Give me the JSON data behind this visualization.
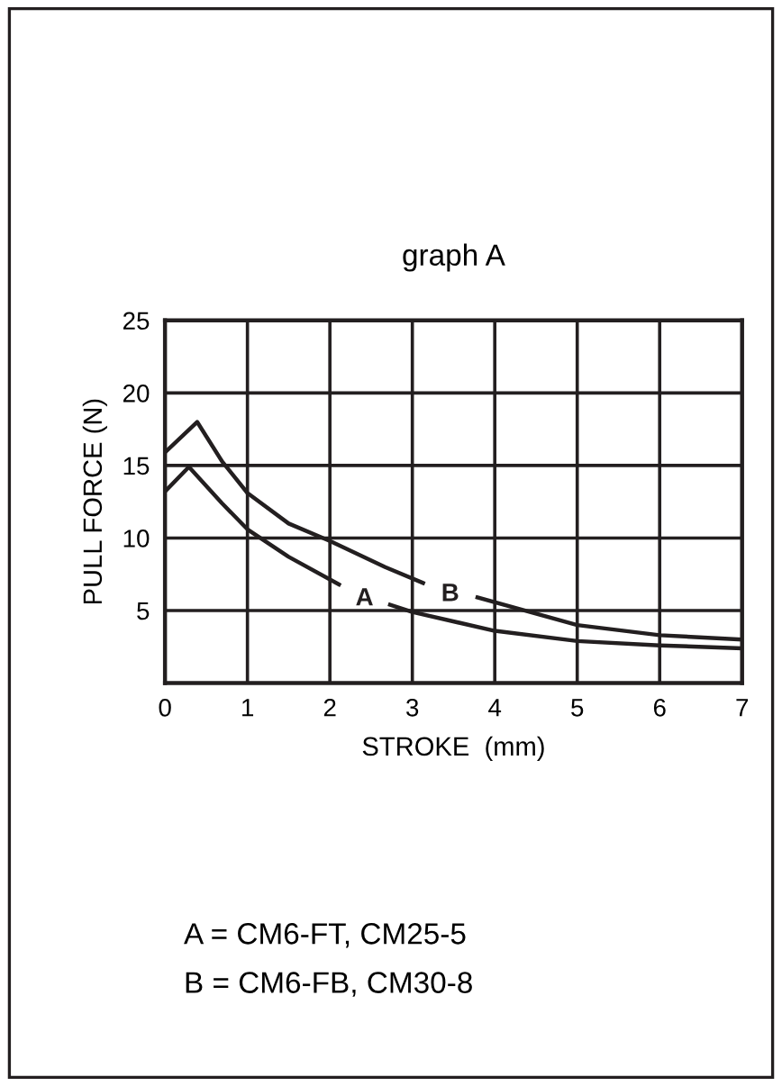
{
  "chart_data": {
    "type": "line",
    "title": "graph A",
    "xlabel": "STROKE  (mm)",
    "ylabel": "PULL FORCE (N)",
    "xlim": [
      0,
      7
    ],
    "xticks": [
      0,
      1,
      2,
      3,
      4,
      5,
      6,
      7
    ],
    "ylim": [
      0,
      25
    ],
    "yticks": [
      5,
      10,
      15,
      20,
      25
    ],
    "grid": true,
    "legend": false,
    "series": [
      {
        "name": "A",
        "color": "#231f20",
        "x": [
          0,
          0.29,
          0.69,
          1,
          1.5,
          2.11,
          null,
          2.73,
          3,
          4,
          5,
          6,
          7
        ],
        "values": [
          13.2,
          14.9,
          12.4,
          10.6,
          8.7,
          6.8,
          null,
          5.4,
          4.9,
          3.6,
          2.9,
          2.6,
          2.4
        ]
      },
      {
        "name": "B",
        "color": "#231f20",
        "x": [
          0,
          0.39,
          0.69,
          1,
          1.5,
          2,
          2.67,
          3.13,
          null,
          3.79,
          5,
          6,
          7
        ],
        "values": [
          15.9,
          18.0,
          15.3,
          13.1,
          11,
          9.8,
          8.0,
          6.9,
          null,
          5.9,
          4.0,
          3.3,
          3.0
        ]
      }
    ],
    "annotations": [
      "A = CM6-FT, CM25-5",
      "B = CM6-FB, CM30-8"
    ]
  }
}
